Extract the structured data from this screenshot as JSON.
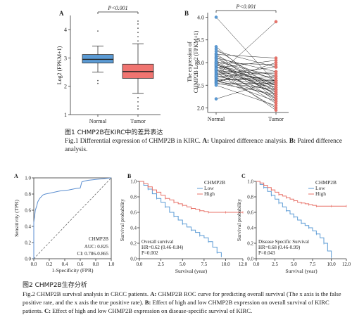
{
  "figure1": {
    "caption_zh": "图1 CHMP2B在KIRC中的差异表达",
    "caption_en_prefix": "Fig.1 Differential expression of CHMP2B in KIRC.",
    "caption_a_label": "A:",
    "caption_a_text": "Unpaired difference analysis.",
    "caption_b_label": "B:",
    "caption_b_text": "Paired difference analysis."
  },
  "figure2": {
    "caption_zh": "图2 CHMP2B生存分析",
    "caption_en_prefix": "Fig.2 CHMP2B survival analysis in CRCC patients.",
    "caption_a_label": "A:",
    "caption_a_text": "CHMP2B ROC curve for predicting overall survival (The x axis is the false positive rate, and the x axis the true positive rate).",
    "caption_b_label": "B:",
    "caption_b_text": "Effect of high and low CHMP2B expression on overall survival of KIRC patients.",
    "caption_c_label": "C:",
    "caption_c_text": "Effect of high and low CHMP2B expression on disease-specific survival of KIRC."
  },
  "colors": {
    "low": "#5b9bd5",
    "high": "#e8736a",
    "box_low": "#5b9bd5",
    "box_high": "#f07470"
  },
  "chart_data": [
    {
      "type": "box",
      "panel": "A",
      "categories": [
        "Normal",
        "Tumor"
      ],
      "ylabel": "Log2 (FPKM+1)",
      "ylim": [
        1,
        4.5
      ],
      "yticks": [
        "1",
        "2",
        "3",
        "4"
      ],
      "pvalue": "P<0.001",
      "boxes": [
        {
          "name": "Normal",
          "min": 2.5,
          "q1": 2.82,
          "median": 2.95,
          "q3": 3.12,
          "max": 3.42,
          "outliers": [
            2.2,
            3.95,
            2.1
          ]
        },
        {
          "name": "Tumor",
          "min": 1.75,
          "q1": 2.28,
          "median": 2.52,
          "q3": 2.78,
          "max": 3.5,
          "outliers": [
            1.6,
            1.45,
            1.3,
            1.2,
            3.6,
            3.75,
            3.9,
            4.05,
            4.2,
            4.3
          ]
        }
      ]
    },
    {
      "type": "paired",
      "panel": "B",
      "categories": [
        "Normal",
        "Tumor"
      ],
      "ylabel": "The expression of CHMP2B Log2 (FPKM+1)",
      "ylim": [
        1.9,
        4.1
      ],
      "yticks": [
        "2.0",
        "2.5",
        "3.0",
        "3.5",
        "4.0"
      ],
      "pvalue": "P<0.001",
      "pairs": [
        [
          4.0,
          2.55
        ],
        [
          3.35,
          2.25
        ],
        [
          3.3,
          2.4
        ],
        [
          3.25,
          2.9
        ],
        [
          3.2,
          2.2
        ],
        [
          3.18,
          3.1
        ],
        [
          3.15,
          2.6
        ],
        [
          3.12,
          2.35
        ],
        [
          3.1,
          2.8
        ],
        [
          3.08,
          2.5
        ],
        [
          3.05,
          2.15
        ],
        [
          3.02,
          2.7
        ],
        [
          3.0,
          2.95
        ],
        [
          2.98,
          2.45
        ],
        [
          2.96,
          2.3
        ],
        [
          2.94,
          2.65
        ],
        [
          2.92,
          2.1
        ],
        [
          2.9,
          2.55
        ],
        [
          2.88,
          3.05
        ],
        [
          2.86,
          2.4
        ],
        [
          2.84,
          2.2
        ],
        [
          2.82,
          2.75
        ],
        [
          2.8,
          2.6
        ],
        [
          2.78,
          2.0
        ],
        [
          2.76,
          2.5
        ],
        [
          2.74,
          2.9
        ],
        [
          2.72,
          2.35
        ],
        [
          2.7,
          2.45
        ],
        [
          2.68,
          2.8
        ],
        [
          2.66,
          2.25
        ],
        [
          2.64,
          2.6
        ],
        [
          2.62,
          2.15
        ],
        [
          2.6,
          2.7
        ],
        [
          2.58,
          2.4
        ],
        [
          2.56,
          3.0
        ],
        [
          2.55,
          2.3
        ],
        [
          2.53,
          2.55
        ],
        [
          2.5,
          2.05
        ],
        [
          2.7,
          3.9
        ],
        [
          2.2,
          2.6
        ],
        [
          2.85,
          1.95
        ],
        [
          3.0,
          2.3
        ],
        [
          2.95,
          2.5
        ]
      ]
    },
    {
      "type": "line",
      "panel": "A",
      "subtype": "roc",
      "xlabel": "1-Specificity (FPR)",
      "ylabel": "Sensitivity (TPR)",
      "xlim": [
        0,
        1
      ],
      "ylim": [
        0,
        1
      ],
      "ticks": [
        "0.0",
        "0.2",
        "0.4",
        "0.6",
        "0.8",
        "1.0"
      ],
      "legend_title": "CHMP2B",
      "auc_text": "AUC: 0.825",
      "ci_text": "CI: 0.786-0.865",
      "x": [
        0,
        0.0,
        0.01,
        0.02,
        0.03,
        0.04,
        0.05,
        0.06,
        0.08,
        0.1,
        0.12,
        0.15,
        0.2,
        0.25,
        0.3,
        0.35,
        0.4,
        0.45,
        0.5,
        0.55,
        0.6,
        0.62,
        0.65,
        0.7,
        0.8,
        0.9,
        1.0
      ],
      "y": [
        0,
        0.45,
        0.52,
        0.6,
        0.63,
        0.66,
        0.7,
        0.72,
        0.75,
        0.77,
        0.79,
        0.8,
        0.81,
        0.82,
        0.83,
        0.84,
        0.845,
        0.85,
        0.86,
        0.87,
        0.875,
        0.95,
        0.96,
        0.97,
        0.98,
        0.99,
        1.0
      ]
    },
    {
      "type": "line",
      "panel": "B",
      "subtype": "km",
      "xlabel": "Survival (year)",
      "ylabel": "Survival probability",
      "xlim": [
        0,
        12
      ],
      "ylim": [
        0,
        1
      ],
      "xticks": [
        "0.0",
        "2.5",
        "5.0",
        "7.5",
        "10.0",
        "12.0"
      ],
      "yticks": [
        "0.0",
        "0.2",
        "0.4",
        "0.6",
        "0.8",
        "1.0"
      ],
      "legend_title": "CHMP2B",
      "series": [
        {
          "name": "Low",
          "x": [
            0,
            0.5,
            1,
            1.5,
            2,
            2.5,
            3,
            3.5,
            4,
            4.5,
            5,
            5.5,
            6,
            6.5,
            7,
            7.5,
            8,
            8.5,
            9,
            9.5
          ],
          "y": [
            1,
            0.95,
            0.9,
            0.84,
            0.78,
            0.73,
            0.67,
            0.6,
            0.55,
            0.5,
            0.45,
            0.41,
            0.37,
            0.34,
            0.3,
            0.27,
            0.22,
            0.15,
            0.08,
            0.02
          ]
        },
        {
          "name": "High",
          "x": [
            0,
            0.5,
            1,
            1.5,
            2,
            2.5,
            3,
            3.5,
            4,
            4.5,
            5,
            5.5,
            6,
            6.5,
            7,
            7.5,
            8,
            9,
            10,
            11,
            12
          ],
          "y": [
            1,
            0.97,
            0.93,
            0.89,
            0.86,
            0.82,
            0.78,
            0.76,
            0.73,
            0.71,
            0.69,
            0.67,
            0.65,
            0.64,
            0.62,
            0.61,
            0.6,
            0.6,
            0.6,
            0.6,
            0.6
          ]
        }
      ],
      "annotation": [
        "Overall survival",
        "HR=0.62 (0.46-0.84)",
        "P=0.002"
      ]
    },
    {
      "type": "line",
      "panel": "C",
      "subtype": "km",
      "xlabel": "Survival (year)",
      "ylabel": "Survival probability",
      "xlim": [
        0,
        12
      ],
      "ylim": [
        0,
        1
      ],
      "xticks": [
        "0.0",
        "2.5",
        "5.0",
        "7.5",
        "10.0",
        "12.0"
      ],
      "yticks": [
        "0.0",
        "0.2",
        "0.4",
        "0.6",
        "0.8",
        "1.0"
      ],
      "legend_title": "CHMP2B",
      "series": [
        {
          "name": "Low",
          "x": [
            0,
            0.5,
            1,
            1.5,
            2,
            2.5,
            3,
            3.5,
            4,
            4.5,
            5,
            5.5,
            6,
            6.5,
            7,
            7.5,
            8,
            8.5,
            9,
            9.5,
            10
          ],
          "y": [
            1,
            0.96,
            0.92,
            0.87,
            0.82,
            0.77,
            0.72,
            0.67,
            0.62,
            0.58,
            0.54,
            0.5,
            0.46,
            0.43,
            0.4,
            0.36,
            0.32,
            0.27,
            0.2,
            0.1,
            0.02
          ]
        },
        {
          "name": "High",
          "x": [
            0,
            0.5,
            1,
            1.5,
            2,
            2.5,
            3,
            3.5,
            4,
            4.5,
            5,
            5.5,
            6,
            6.5,
            7,
            7.5,
            8,
            9,
            10,
            11,
            12
          ],
          "y": [
            1,
            0.98,
            0.95,
            0.92,
            0.89,
            0.86,
            0.83,
            0.81,
            0.79,
            0.77,
            0.75,
            0.73,
            0.72,
            0.71,
            0.7,
            0.69,
            0.68,
            0.68,
            0.68,
            0.68,
            0.68
          ]
        }
      ],
      "annotation": [
        "Disease   Specific  Survival",
        "HR=0.68 (0.46-0.99)",
        "P=0.043"
      ]
    }
  ]
}
